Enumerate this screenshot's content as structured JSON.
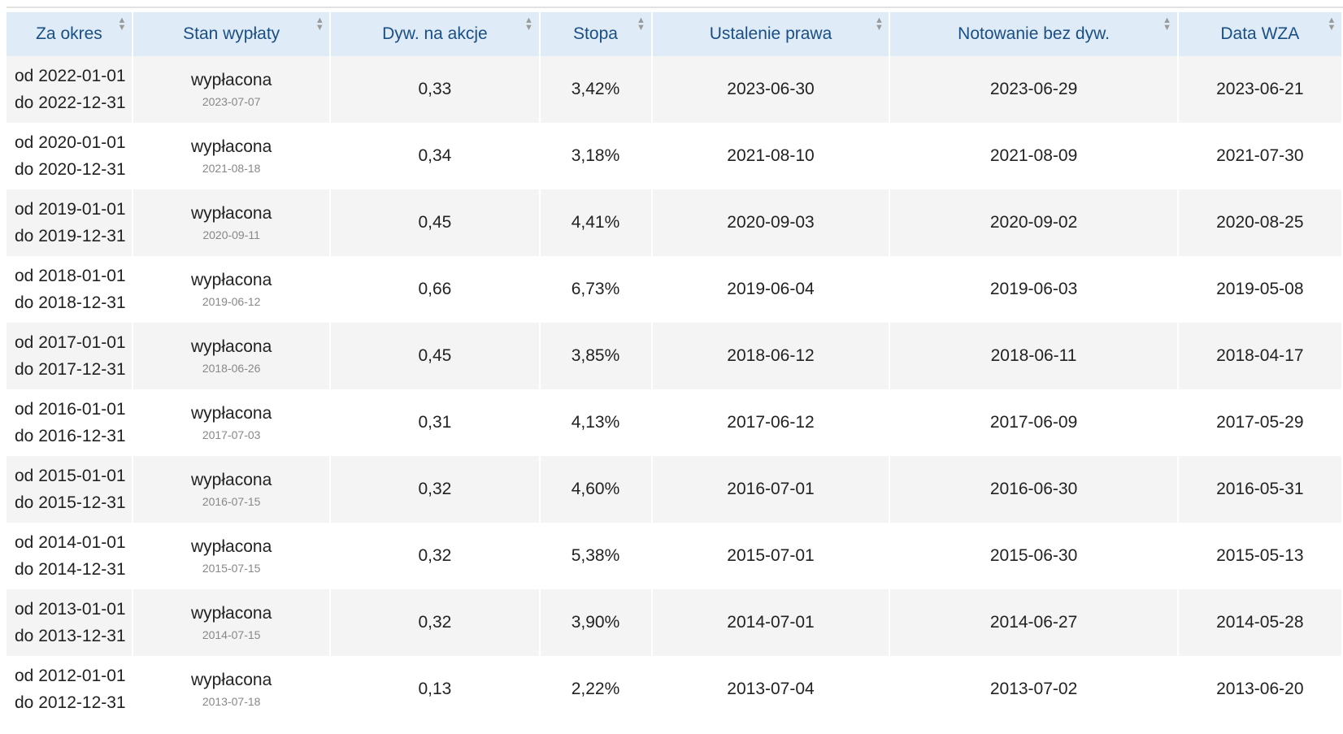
{
  "table": {
    "headers": [
      {
        "key": "period",
        "label": "Za okres"
      },
      {
        "key": "status",
        "label": "Stan wypłaty"
      },
      {
        "key": "dividend",
        "label": "Dyw. na akcje"
      },
      {
        "key": "rate",
        "label": "Stopa"
      },
      {
        "key": "record_date",
        "label": "Ustalenie prawa"
      },
      {
        "key": "ex_date",
        "label": "Notowanie bez dyw."
      },
      {
        "key": "agm_date",
        "label": "Data WZA"
      }
    ],
    "rows": [
      {
        "from": "od 2022-01-01",
        "to": "do 2022-12-31",
        "status": "wypłacona",
        "paid_date": "2023-07-07",
        "dividend": "0,33",
        "rate": "3,42%",
        "record_date": "2023-06-30",
        "ex_date": "2023-06-29",
        "agm_date": "2023-06-21"
      },
      {
        "from": "od 2020-01-01",
        "to": "do 2020-12-31",
        "status": "wypłacona",
        "paid_date": "2021-08-18",
        "dividend": "0,34",
        "rate": "3,18%",
        "record_date": "2021-08-10",
        "ex_date": "2021-08-09",
        "agm_date": "2021-07-30"
      },
      {
        "from": "od 2019-01-01",
        "to": "do 2019-12-31",
        "status": "wypłacona",
        "paid_date": "2020-09-11",
        "dividend": "0,45",
        "rate": "4,41%",
        "record_date": "2020-09-03",
        "ex_date": "2020-09-02",
        "agm_date": "2020-08-25"
      },
      {
        "from": "od 2018-01-01",
        "to": "do 2018-12-31",
        "status": "wypłacona",
        "paid_date": "2019-06-12",
        "dividend": "0,66",
        "rate": "6,73%",
        "record_date": "2019-06-04",
        "ex_date": "2019-06-03",
        "agm_date": "2019-05-08"
      },
      {
        "from": "od 2017-01-01",
        "to": "do 2017-12-31",
        "status": "wypłacona",
        "paid_date": "2018-06-26",
        "dividend": "0,45",
        "rate": "3,85%",
        "record_date": "2018-06-12",
        "ex_date": "2018-06-11",
        "agm_date": "2018-04-17"
      },
      {
        "from": "od 2016-01-01",
        "to": "do 2016-12-31",
        "status": "wypłacona",
        "paid_date": "2017-07-03",
        "dividend": "0,31",
        "rate": "4,13%",
        "record_date": "2017-06-12",
        "ex_date": "2017-06-09",
        "agm_date": "2017-05-29"
      },
      {
        "from": "od 2015-01-01",
        "to": "do 2015-12-31",
        "status": "wypłacona",
        "paid_date": "2016-07-15",
        "dividend": "0,32",
        "rate": "4,60%",
        "record_date": "2016-07-01",
        "ex_date": "2016-06-30",
        "agm_date": "2016-05-31"
      },
      {
        "from": "od 2014-01-01",
        "to": "do 2014-12-31",
        "status": "wypłacona",
        "paid_date": "2015-07-15",
        "dividend": "0,32",
        "rate": "5,38%",
        "record_date": "2015-07-01",
        "ex_date": "2015-06-30",
        "agm_date": "2015-05-13"
      },
      {
        "from": "od 2013-01-01",
        "to": "do 2013-12-31",
        "status": "wypłacona",
        "paid_date": "2014-07-15",
        "dividend": "0,32",
        "rate": "3,90%",
        "record_date": "2014-07-01",
        "ex_date": "2014-06-27",
        "agm_date": "2014-05-28"
      },
      {
        "from": "od 2012-01-01",
        "to": "do 2012-12-31",
        "status": "wypłacona",
        "paid_date": "2013-07-18",
        "dividend": "0,13",
        "rate": "2,22%",
        "record_date": "2013-07-04",
        "ex_date": "2013-07-02",
        "agm_date": "2013-06-20"
      }
    ]
  },
  "icons": {
    "sort": "sort-arrows-icon"
  },
  "colors": {
    "header_bg": "#dfebf6",
    "header_text": "#1a4f86",
    "row_alt_bg": "#f4f4f4",
    "secondary_text": "#888888"
  }
}
